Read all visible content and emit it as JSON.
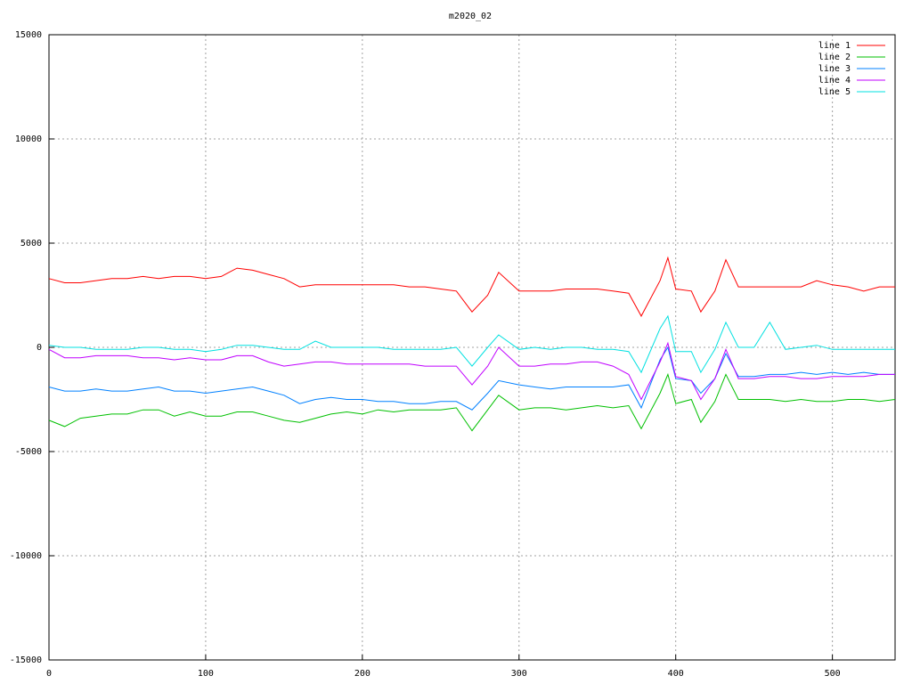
{
  "chart_data": {
    "type": "line",
    "title": "m2020_02",
    "x": [
      0,
      10,
      20,
      30,
      40,
      50,
      60,
      70,
      80,
      90,
      100,
      110,
      120,
      130,
      140,
      150,
      160,
      170,
      180,
      190,
      200,
      210,
      220,
      230,
      240,
      250,
      260,
      270,
      280,
      287,
      300,
      310,
      320,
      330,
      340,
      350,
      360,
      370,
      378,
      390,
      395,
      400,
      410,
      416,
      425,
      432,
      440,
      450,
      460,
      470,
      480,
      490,
      500,
      510,
      520,
      530,
      540
    ],
    "series": [
      {
        "name": "line 1",
        "color": "#ff0000",
        "values": [
          3300,
          3100,
          3100,
          3200,
          3300,
          3300,
          3400,
          3300,
          3400,
          3400,
          3300,
          3400,
          3800,
          3700,
          3500,
          3300,
          2900,
          3000,
          3000,
          3000,
          3000,
          3000,
          3000,
          2900,
          2900,
          2800,
          2700,
          1700,
          2500,
          3600,
          2700,
          2700,
          2700,
          2800,
          2800,
          2800,
          2700,
          2600,
          1500,
          3200,
          4300,
          2800,
          2700,
          1700,
          2700,
          4200,
          2900,
          2900,
          2900,
          2900,
          2900,
          3200,
          3000,
          2900,
          2700,
          2900,
          2900
        ]
      },
      {
        "name": "line 2",
        "color": "#00c000",
        "values": [
          -3500,
          -3800,
          -3400,
          -3300,
          -3200,
          -3200,
          -3000,
          -3000,
          -3300,
          -3100,
          -3300,
          -3300,
          -3100,
          -3100,
          -3300,
          -3500,
          -3600,
          -3400,
          -3200,
          -3100,
          -3200,
          -3000,
          -3100,
          -3000,
          -3000,
          -3000,
          -2900,
          -4000,
          -3000,
          -2300,
          -3000,
          -2900,
          -2900,
          -3000,
          -2900,
          -2800,
          -2900,
          -2800,
          -3900,
          -2200,
          -1300,
          -2700,
          -2500,
          -3600,
          -2600,
          -1300,
          -2500,
          -2500,
          -2500,
          -2600,
          -2500,
          -2600,
          -2600,
          -2500,
          -2500,
          -2600,
          -2500
        ]
      },
      {
        "name": "line 3",
        "color": "#0080ff",
        "values": [
          -1900,
          -2100,
          -2100,
          -2000,
          -2100,
          -2100,
          -2000,
          -1900,
          -2100,
          -2100,
          -2200,
          -2100,
          -2000,
          -1900,
          -2100,
          -2300,
          -2700,
          -2500,
          -2400,
          -2500,
          -2500,
          -2600,
          -2600,
          -2700,
          -2700,
          -2600,
          -2600,
          -3000,
          -2200,
          -1600,
          -1800,
          -1900,
          -2000,
          -1900,
          -1900,
          -1900,
          -1900,
          -1800,
          -2900,
          -600,
          0,
          -1500,
          -1600,
          -2200,
          -1500,
          -300,
          -1400,
          -1400,
          -1300,
          -1300,
          -1200,
          -1300,
          -1200,
          -1300,
          -1200,
          -1300,
          -1300
        ]
      },
      {
        "name": "line 4",
        "color": "#c000ff",
        "values": [
          -100,
          -500,
          -500,
          -400,
          -400,
          -400,
          -500,
          -500,
          -600,
          -500,
          -600,
          -600,
          -400,
          -400,
          -700,
          -900,
          -800,
          -700,
          -700,
          -800,
          -800,
          -800,
          -800,
          -800,
          -900,
          -900,
          -900,
          -1800,
          -900,
          0,
          -900,
          -900,
          -800,
          -800,
          -700,
          -700,
          -900,
          -1300,
          -2500,
          -700,
          200,
          -1400,
          -1600,
          -2500,
          -1500,
          -100,
          -1500,
          -1500,
          -1400,
          -1400,
          -1500,
          -1500,
          -1400,
          -1400,
          -1400,
          -1300,
          -1300
        ]
      },
      {
        "name": "line 5",
        "color": "#00e0e0",
        "values": [
          100,
          0,
          0,
          -100,
          -100,
          -100,
          0,
          0,
          -100,
          -100,
          -200,
          -100,
          100,
          100,
          0,
          -100,
          -100,
          300,
          0,
          0,
          0,
          0,
          -100,
          -100,
          -100,
          -100,
          0,
          -900,
          0,
          600,
          -100,
          0,
          -100,
          0,
          0,
          -100,
          -100,
          -200,
          -1200,
          900,
          1500,
          -200,
          -200,
          -1200,
          -100,
          1200,
          0,
          0,
          1200,
          -100,
          0,
          100,
          -100,
          -100,
          -100,
          -100,
          -100
        ]
      }
    ],
    "xlim": [
      0,
      540
    ],
    "xticks": [
      0,
      100,
      200,
      300,
      400,
      500
    ],
    "ylim": [
      -15000,
      15000
    ],
    "yticks": [
      -15000,
      -10000,
      -5000,
      0,
      5000,
      10000,
      15000
    ],
    "grid": true,
    "legend": "top-right"
  }
}
